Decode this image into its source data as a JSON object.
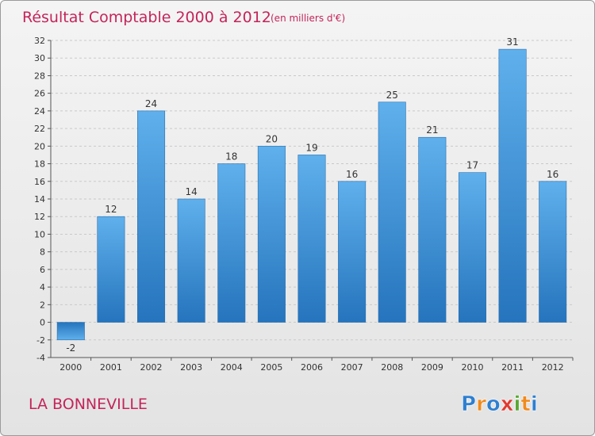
{
  "chart_data": {
    "type": "bar",
    "title": "Résultat Comptable 2000 à 2012",
    "subtitle": "(en milliers d'€)",
    "categories": [
      "2000",
      "2001",
      "2002",
      "2003",
      "2004",
      "2005",
      "2006",
      "2007",
      "2008",
      "2009",
      "2010",
      "2011",
      "2012"
    ],
    "values": [
      -2,
      12,
      24,
      14,
      18,
      20,
      19,
      16,
      25,
      21,
      17,
      31,
      16
    ],
    "ylim": [
      -4,
      32
    ],
    "yticks": [
      -4,
      -2,
      0,
      2,
      4,
      6,
      8,
      10,
      12,
      14,
      16,
      18,
      20,
      22,
      24,
      26,
      28,
      30,
      32
    ],
    "xlabel": "",
    "ylabel": "",
    "grid": true,
    "bar_color": "#3f8fd6",
    "title_color": "#c4245a"
  },
  "footer": {
    "label": "LA BONNEVILLE",
    "logo_letters": [
      {
        "ch": "P",
        "color": "#2e7fd0"
      },
      {
        "ch": "r",
        "color": "#f08a1c"
      },
      {
        "ch": "o",
        "color": "#2e7fd0"
      },
      {
        "ch": "x",
        "color": "#e03a2f"
      },
      {
        "ch": "i",
        "color": "#5aa832"
      },
      {
        "ch": "t",
        "color": "#f08a1c"
      },
      {
        "ch": "i",
        "color": "#2e7fd0"
      }
    ]
  }
}
